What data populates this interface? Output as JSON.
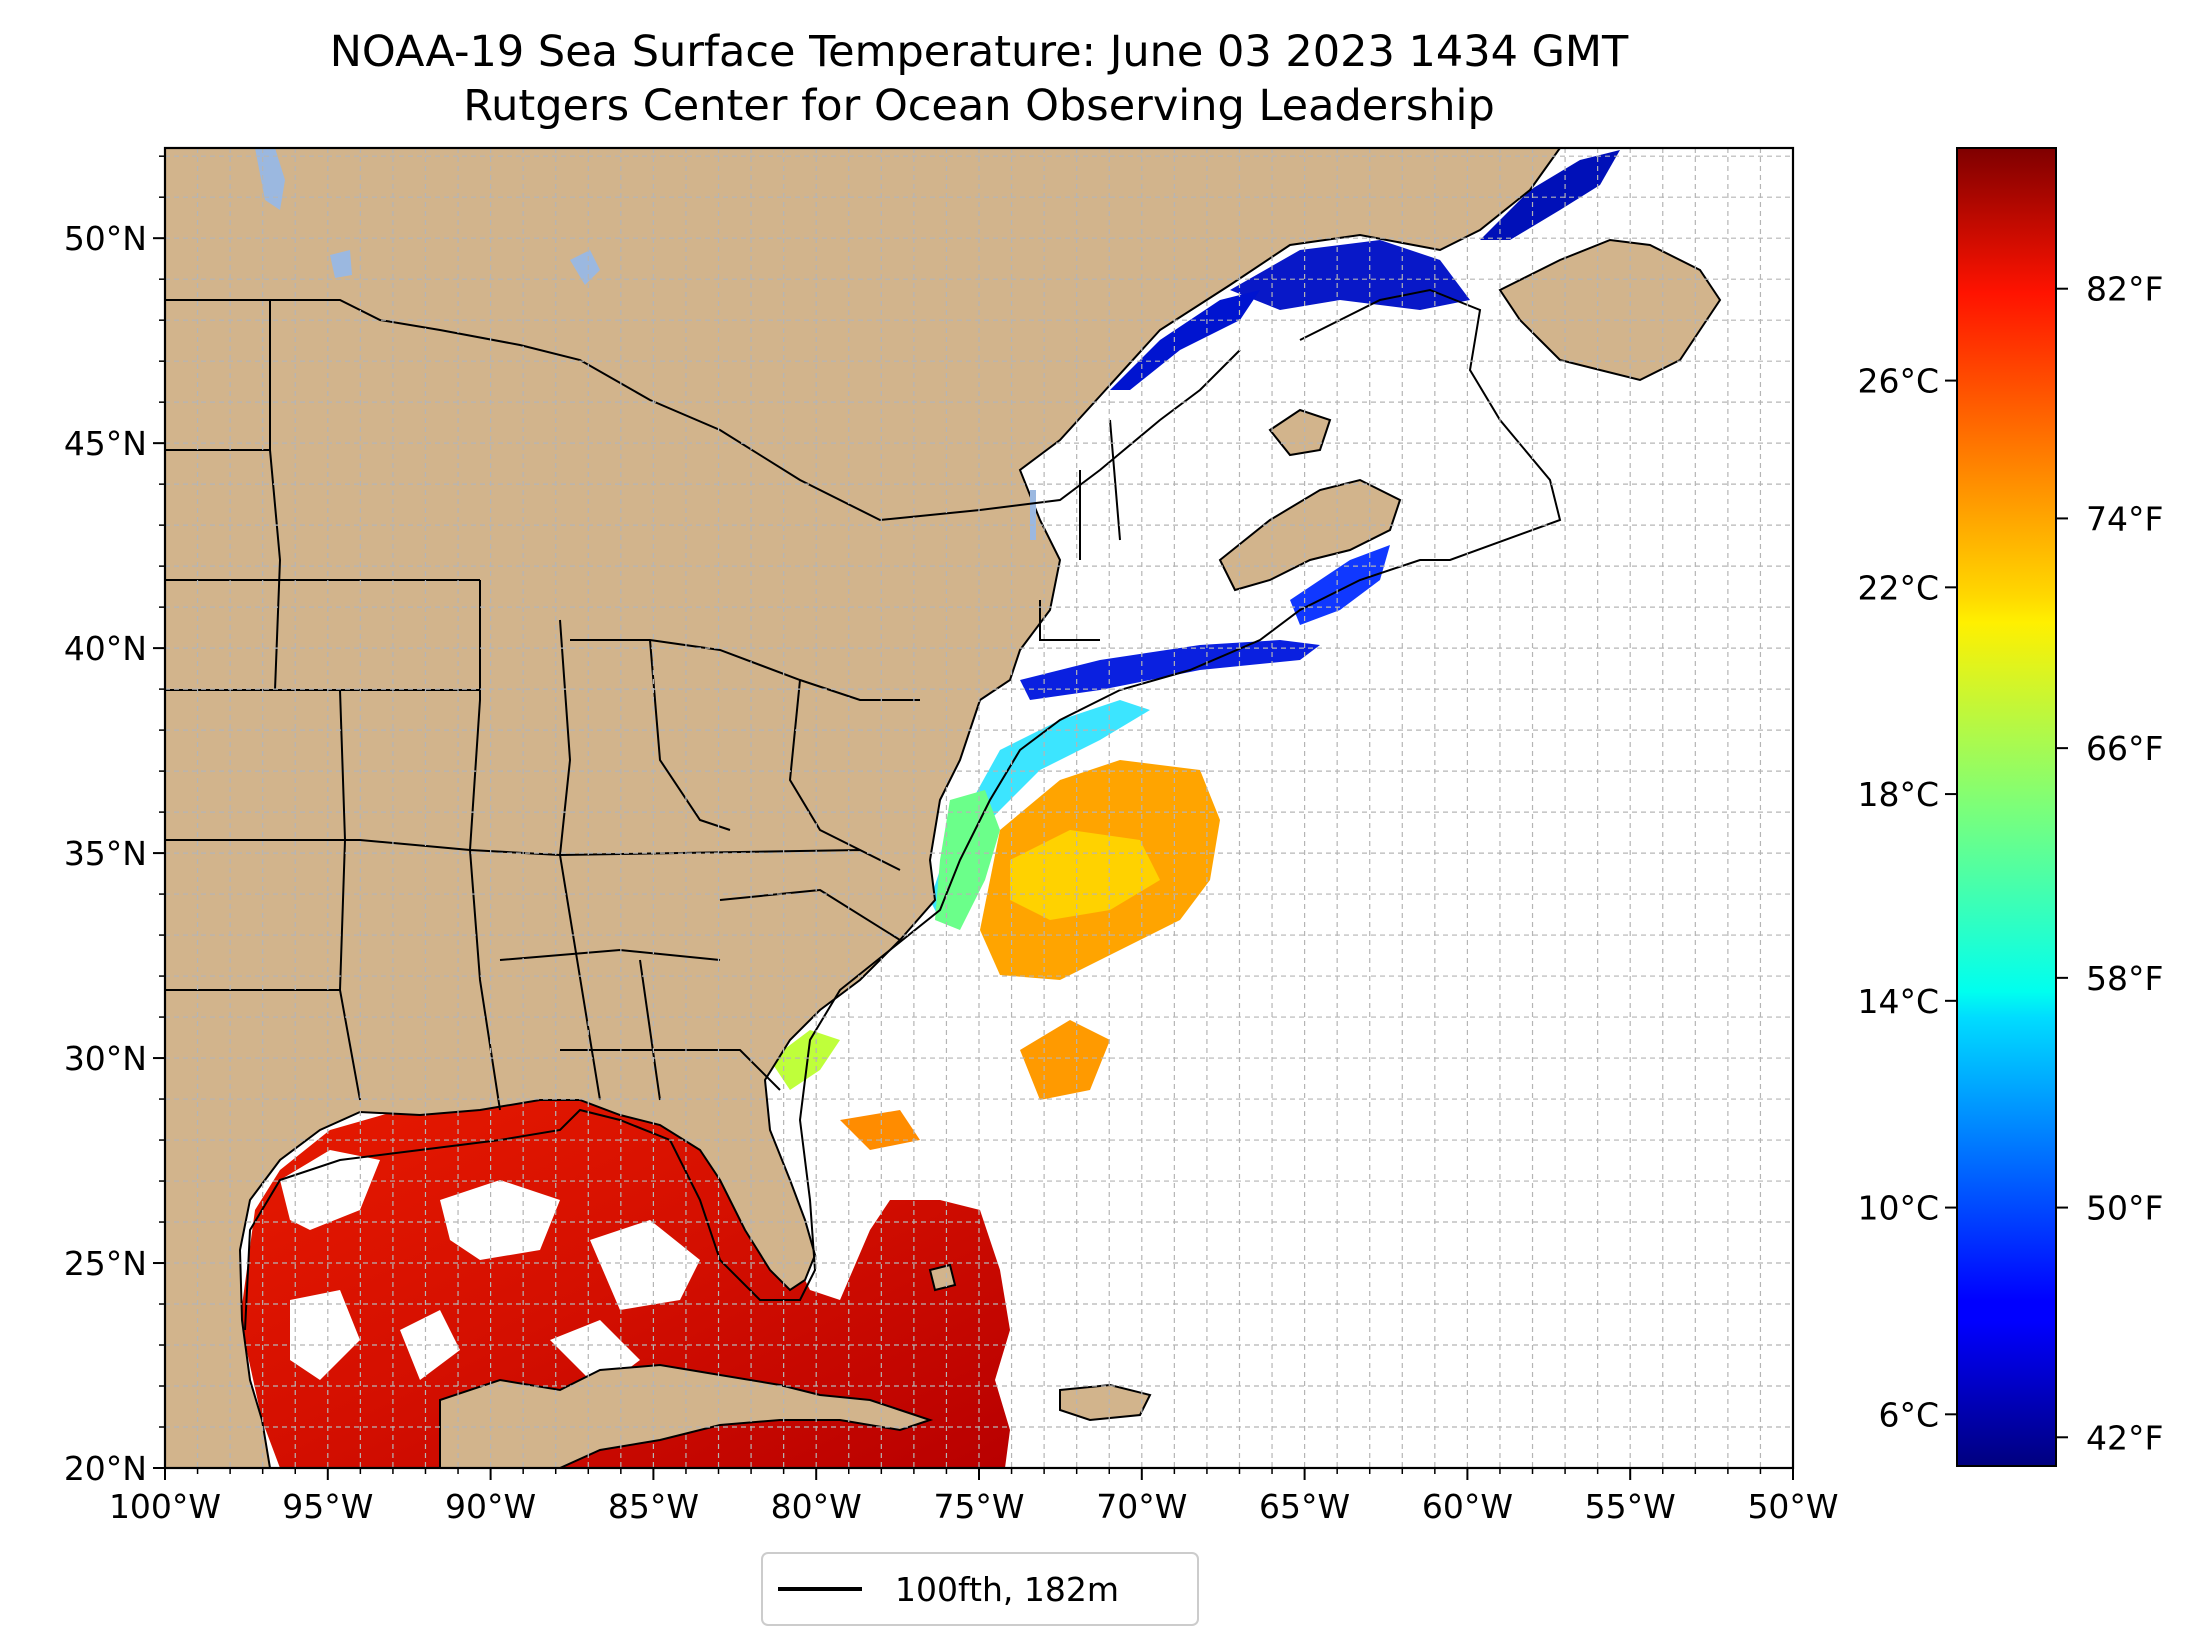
{
  "title": {
    "line1": "NOAA-19 Sea Surface Temperature: June 03 2023 1434 GMT",
    "line2": "Rutgers Center for Ocean Observing Leadership"
  },
  "map": {
    "lon_range": [
      -100,
      -50
    ],
    "lat_range": [
      20,
      52.2
    ],
    "x_ticks": [
      "100°W",
      "95°W",
      "90°W",
      "85°W",
      "80°W",
      "75°W",
      "70°W",
      "65°W",
      "60°W",
      "55°W",
      "50°W"
    ],
    "y_ticks": [
      "20°N",
      "25°N",
      "30°N",
      "35°N",
      "40°N",
      "45°N",
      "50°N"
    ],
    "gridlines": "dashed, 1° spacing",
    "colors": {
      "land": "#d2b48c",
      "lakes": "#9bb8e0",
      "no_data": "#ffffff",
      "borders": "#000000",
      "grid": "#b5b5b5"
    }
  },
  "colorbar": {
    "cmap": "jet",
    "range_c": [
      5,
      30.5
    ],
    "celsius_ticks": [
      "6°C",
      "10°C",
      "14°C",
      "18°C",
      "22°C",
      "26°C"
    ],
    "fahrenheit_ticks": [
      "42°F",
      "50°F",
      "58°F",
      "66°F",
      "74°F",
      "82°F"
    ]
  },
  "legend": {
    "label": "100fth, 182m",
    "line_color": "#000000",
    "placement": "bottom-center"
  }
}
